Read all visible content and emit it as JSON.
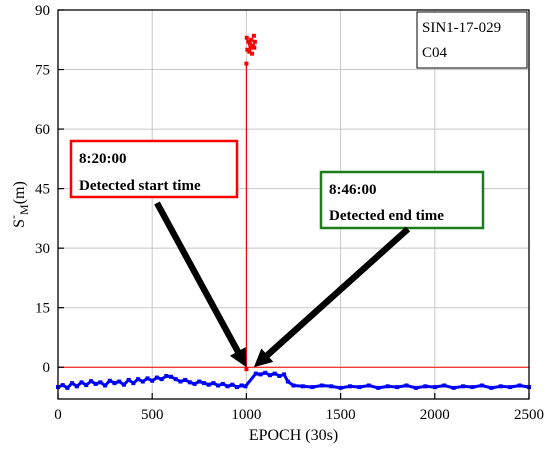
{
  "chart_data": {
    "type": "scatter",
    "title": "",
    "xlabel": "EPOCH (30s)",
    "ylabel_main": "S",
    "ylabel_super": "-",
    "ylabel_sub": "M",
    "ylabel_unit": "(m)",
    "xlim": [
      0,
      2500
    ],
    "ylim": [
      -8,
      90
    ],
    "x_ticks": [
      0,
      500,
      1000,
      1500,
      2000,
      2500
    ],
    "y_ticks": [
      0,
      15,
      30,
      45,
      60,
      75,
      90
    ],
    "y_tick_labels": [
      "0",
      "15",
      "30",
      "45",
      "60",
      "75",
      "90"
    ],
    "grid": true,
    "legend_position": "top-right",
    "legend_lines": [
      "SIN1-17-029",
      "C04"
    ],
    "threshold": {
      "y": 0,
      "color": "#ff0000"
    },
    "series": [
      {
        "color": "#0000ff",
        "points": [
          [
            0,
            -5.0
          ],
          [
            25,
            -4.5
          ],
          [
            50,
            -5.2
          ],
          [
            75,
            -4.0
          ],
          [
            100,
            -4.8
          ],
          [
            125,
            -3.8
          ],
          [
            150,
            -4.5
          ],
          [
            175,
            -3.5
          ],
          [
            200,
            -4.2
          ],
          [
            225,
            -3.8
          ],
          [
            250,
            -4.6
          ],
          [
            275,
            -3.4
          ],
          [
            300,
            -4.0
          ],
          [
            325,
            -3.6
          ],
          [
            350,
            -4.4
          ],
          [
            375,
            -3.2
          ],
          [
            400,
            -4.0
          ],
          [
            425,
            -3.0
          ],
          [
            450,
            -3.6
          ],
          [
            475,
            -2.8
          ],
          [
            500,
            -3.4
          ],
          [
            525,
            -2.6
          ],
          [
            550,
            -3.0
          ],
          [
            575,
            -2.2
          ],
          [
            600,
            -2.4
          ],
          [
            625,
            -3.0
          ],
          [
            650,
            -3.6
          ],
          [
            675,
            -3.2
          ],
          [
            700,
            -3.8
          ],
          [
            725,
            -4.2
          ],
          [
            750,
            -3.6
          ],
          [
            775,
            -4.0
          ],
          [
            800,
            -4.4
          ],
          [
            825,
            -4.0
          ],
          [
            850,
            -4.6
          ],
          [
            875,
            -4.2
          ],
          [
            900,
            -4.8
          ],
          [
            925,
            -4.4
          ],
          [
            950,
            -5.0
          ],
          [
            975,
            -4.6
          ],
          [
            995,
            -4.8
          ],
          [
            1050,
            -1.6
          ],
          [
            1075,
            -1.8
          ],
          [
            1100,
            -1.4
          ],
          [
            1125,
            -2.0
          ],
          [
            1150,
            -1.6
          ],
          [
            1175,
            -2.2
          ],
          [
            1200,
            -1.8
          ],
          [
            1220,
            -3.6
          ],
          [
            1250,
            -4.6
          ],
          [
            1300,
            -4.8
          ],
          [
            1350,
            -5.0
          ],
          [
            1400,
            -4.6
          ],
          [
            1450,
            -4.8
          ],
          [
            1500,
            -5.2
          ],
          [
            1550,
            -4.8
          ],
          [
            1600,
            -5.0
          ],
          [
            1650,
            -4.6
          ],
          [
            1700,
            -5.2
          ],
          [
            1750,
            -4.8
          ],
          [
            1800,
            -5.0
          ],
          [
            1850,
            -4.6
          ],
          [
            1900,
            -5.2
          ],
          [
            1950,
            -4.8
          ],
          [
            2000,
            -5.0
          ],
          [
            2050,
            -4.6
          ],
          [
            2100,
            -5.2
          ],
          [
            2150,
            -4.8
          ],
          [
            2200,
            -5.0
          ],
          [
            2250,
            -4.6
          ],
          [
            2300,
            -5.2
          ],
          [
            2350,
            -4.8
          ],
          [
            2400,
            -5.0
          ],
          [
            2450,
            -4.6
          ],
          [
            2500,
            -5.0
          ]
        ]
      },
      {
        "color": "#ff0000",
        "points": [
          [
            1000,
            -0.5
          ],
          [
            1000,
            76.5
          ],
          [
            1002,
            83.0
          ],
          [
            1005,
            80.0
          ],
          [
            1010,
            82.0
          ],
          [
            1015,
            79.5
          ],
          [
            1018,
            81.5
          ],
          [
            1022,
            80.5
          ],
          [
            1025,
            82.5
          ],
          [
            1030,
            79.0
          ],
          [
            1035,
            81.0
          ],
          [
            1040,
            83.5
          ],
          [
            1042,
            80.5
          ],
          [
            1045,
            82.0
          ]
        ]
      }
    ],
    "annotations": [
      {
        "lines": [
          "8:20:00",
          "Detected start time"
        ],
        "color": "#ff0000",
        "arrow_x": 1000,
        "arrow_y": 0
      },
      {
        "lines": [
          "8:46:00",
          "Detected end time"
        ],
        "color": "#1a7f1a",
        "arrow_x": 1040,
        "arrow_y": 0
      }
    ]
  }
}
